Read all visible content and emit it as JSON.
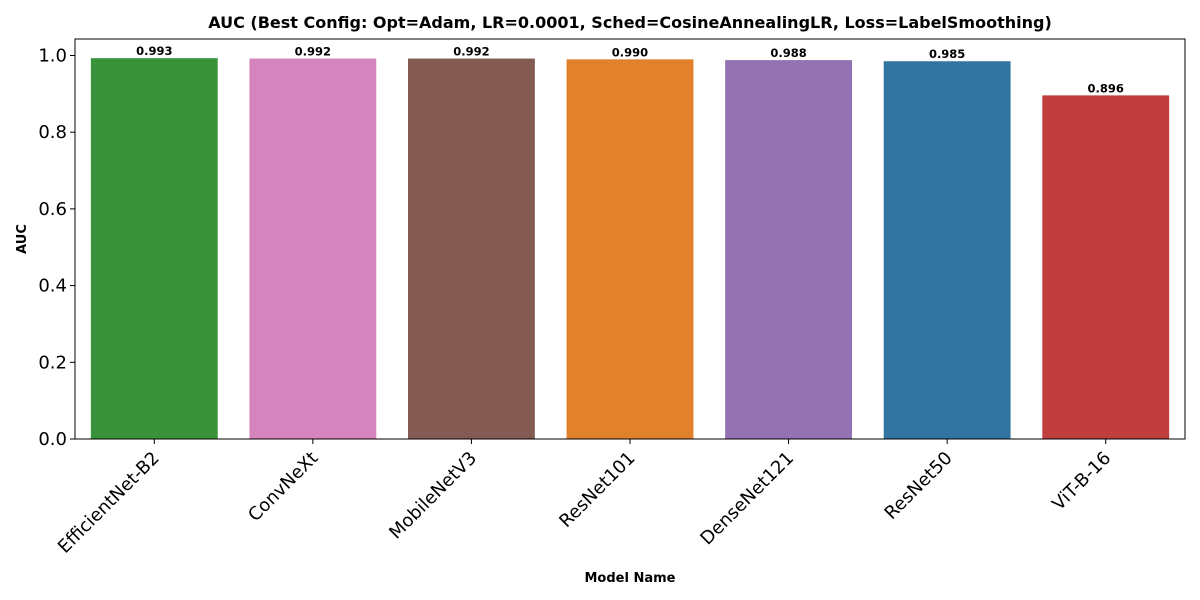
{
  "chart_data": {
    "type": "bar",
    "title": "AUC (Best Config: Opt=Adam, LR=0.0001, Sched=CosineAnnealingLR, Loss=LabelSmoothing)",
    "xlabel": "Model Name",
    "ylabel": "AUC",
    "categories": [
      "EfficientNet-B2",
      "ConvNeXt",
      "MobileNetV3",
      "ResNet101",
      "DenseNet121",
      "ResNet50",
      "ViT-B-16"
    ],
    "values": [
      0.993,
      0.992,
      0.992,
      0.99,
      0.988,
      0.985,
      0.896
    ],
    "value_labels": [
      "0.993",
      "0.992",
      "0.992",
      "0.990",
      "0.988",
      "0.985",
      "0.896"
    ],
    "colors": [
      "#3a923a",
      "#d684bd",
      "#845b53",
      "#e1812c",
      "#9372b2",
      "#3274a1",
      "#c03d3e"
    ],
    "ylim": [
      0,
      1.043
    ],
    "yticks": [
      0.0,
      0.2,
      0.4,
      0.6,
      0.8,
      1.0
    ],
    "ytick_labels": [
      "0.0",
      "0.2",
      "0.4",
      "0.6",
      "0.8",
      "1.0"
    ],
    "grid": false,
    "legend": "none"
  }
}
